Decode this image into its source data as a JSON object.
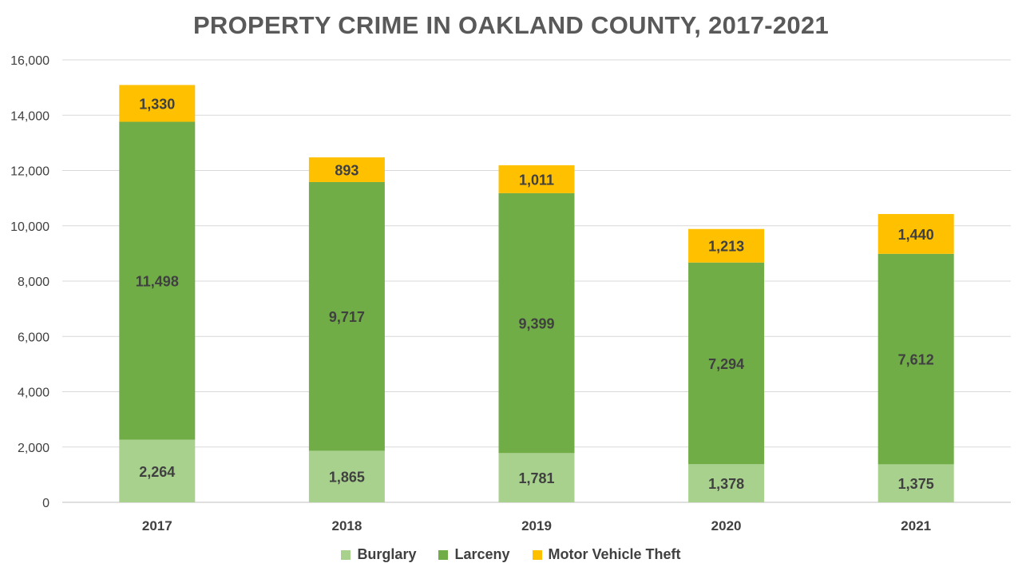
{
  "chart_data": {
    "type": "bar",
    "stacked": true,
    "title": "PROPERTY CRIME IN OAKLAND COUNTY, 2017-2021",
    "categories": [
      "2017",
      "2018",
      "2019",
      "2020",
      "2021"
    ],
    "series": [
      {
        "name": "Burglary",
        "color": "#a9d18e",
        "values": [
          2264,
          1865,
          1781,
          1378,
          1375
        ],
        "labels": [
          "2,264",
          "1,865",
          "1,781",
          "1,378",
          "1,375"
        ]
      },
      {
        "name": "Larceny",
        "color": "#70ad47",
        "values": [
          11498,
          9717,
          9399,
          7294,
          7612
        ],
        "labels": [
          "11,498",
          "9,717",
          "9,399",
          "7,294",
          "7,612"
        ]
      },
      {
        "name": "Motor Vehicle Theft",
        "color": "#ffc000",
        "values": [
          1330,
          893,
          1011,
          1213,
          1440
        ],
        "labels": [
          "1,330",
          "893",
          "1,011",
          "1,213",
          "1,440"
        ]
      }
    ],
    "ylim": [
      0,
      16000
    ],
    "yticks": [
      "0",
      "2,000",
      "4,000",
      "6,000",
      "8,000",
      "10,000",
      "12,000",
      "14,000",
      "16,000"
    ],
    "grid": true,
    "legend": "bottom"
  }
}
